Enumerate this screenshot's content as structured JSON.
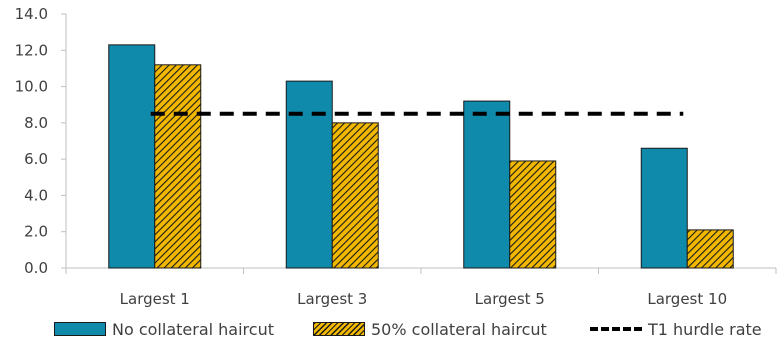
{
  "colors": {
    "no_haircut": "#0f8aab",
    "haircut_fill": "#f2b800",
    "haircut_hatch": "#1a1a1a",
    "hurdle_line": "#000000",
    "axis": "#bfbfbf",
    "text": "#404040"
  },
  "chart_data": {
    "type": "bar",
    "title": "",
    "xlabel": "",
    "ylabel": "",
    "categories": [
      "Largest 1",
      "Largest 3",
      "Largest 5",
      "Largest 10"
    ],
    "ylim": [
      0,
      14
    ],
    "yticks": [
      "0.0",
      "2.0",
      "4.0",
      "6.0",
      "8.0",
      "10.0",
      "12.0",
      "14.0"
    ],
    "grid": false,
    "legend_position": "bottom",
    "series": [
      {
        "name": "No collateral haircut",
        "kind": "bar",
        "pattern": "solid",
        "values": [
          12.3,
          10.3,
          9.2,
          6.6
        ]
      },
      {
        "name": "50% collateral haircut",
        "kind": "bar",
        "pattern": "hatched",
        "values": [
          11.2,
          8.0,
          5.9,
          2.1
        ]
      },
      {
        "name": "T1 hurdle rate",
        "kind": "line",
        "style": "dashed",
        "values": [
          8.5,
          8.5,
          8.5,
          8.5
        ]
      }
    ]
  }
}
